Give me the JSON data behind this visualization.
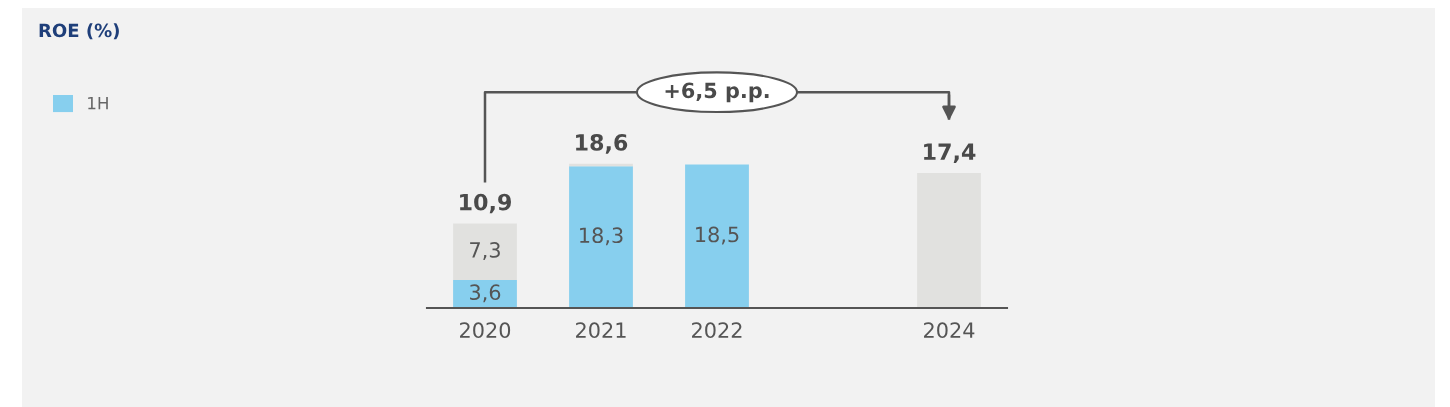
{
  "chart_data": {
    "type": "bar",
    "title": "ROE (%)",
    "stacked": true,
    "categories": [
      "2020",
      "2021",
      "2022",
      null,
      "2024"
    ],
    "series": [
      {
        "name": "1H",
        "color": "#87cfee",
        "values": [
          3.6,
          18.3,
          18.5,
          null,
          null
        ],
        "value_labels": [
          "3,6",
          "18,3",
          "18,5",
          null,
          null
        ]
      },
      {
        "color": "#e1e1df",
        "values": [
          7.3,
          0.3,
          null,
          null,
          17.4
        ],
        "value_labels": [
          "7,3",
          null,
          null,
          null,
          null
        ]
      }
    ],
    "totals": [
      "10,9",
      "18,6",
      null,
      null,
      "17,4"
    ],
    "annotations": [
      "+6,5 p.p."
    ],
    "legend": "top left",
    "grid": false
  }
}
